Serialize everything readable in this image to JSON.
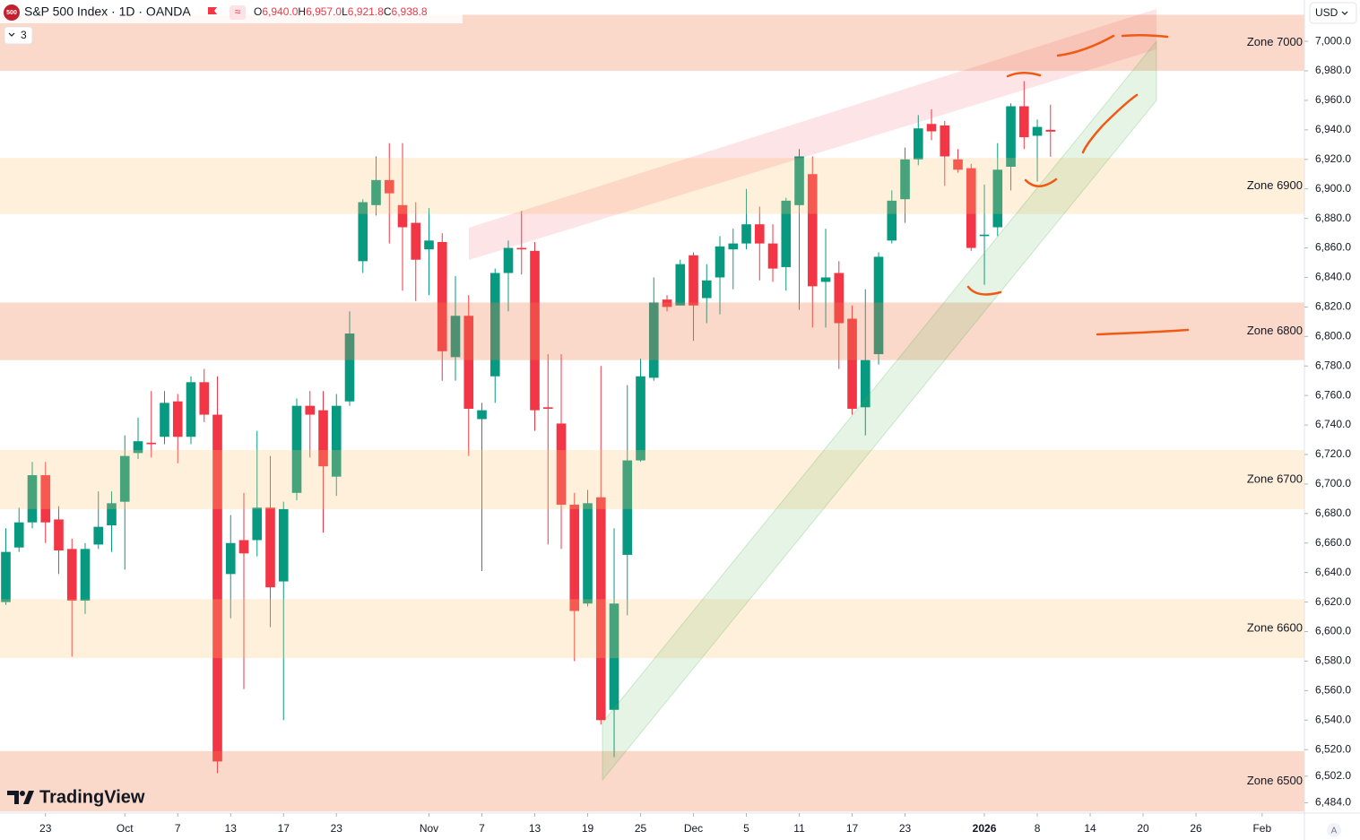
{
  "ui": {
    "logo": "500",
    "symbol": "S&P 500 Index · 1D · OANDA",
    "ohlc": [
      [
        "O",
        "6,940.0"
      ],
      [
        "H",
        "6,957.0"
      ],
      [
        "L",
        "6,921.8"
      ],
      [
        "C",
        "6,938.8"
      ]
    ],
    "indicators": "3",
    "currency": "USD",
    "brand": "TradingView",
    "scale_mode": "A"
  },
  "chart_data": {
    "type": "candlestick",
    "up_color": "#089981",
    "down_color": "#f23645",
    "grid": false,
    "open": [
      6620,
      6657,
      6674,
      6706,
      6676,
      6656,
      6621,
      6659,
      6672,
      6688,
      6721,
      6728,
      6732,
      6756,
      6732,
      6769,
      6747,
      6639,
      6662,
      6662,
      6684,
      6634,
      6694,
      6753,
      6750,
      6705,
      6756,
      6851,
      6889,
      6906,
      6889,
      6877,
      6859,
      6864,
      6786,
      6814,
      6744,
      6773,
      6843,
      6860,
      6858,
      6752,
      6741,
      6686,
      6619,
      6691,
      6547,
      6652,
      6716,
      6772,
      6825,
      6821,
      6855,
      6826,
      6840,
      6859,
      6863,
      6876,
      6863,
      6847,
      6889,
      6910,
      6837,
      6843,
      6812,
      6752,
      6788,
      6865,
      6893,
      6920,
      6944,
      6943,
      6920,
      6914,
      6868,
      6874,
      6915,
      6956,
      6936,
      6940
    ],
    "high": [
      6670,
      6684,
      6715,
      6715,
      6685,
      6663,
      6660,
      6695,
      6695,
      6733,
      6745,
      6763,
      6763,
      6761,
      6773,
      6778,
      6773,
      6679,
      6694,
      6736,
      6719,
      6688,
      6758,
      6763,
      6763,
      6761,
      6817,
      6893,
      6922,
      6931,
      6931,
      6891,
      6887,
      6870,
      6841,
      6828,
      6755,
      6846,
      6865,
      6885,
      6864,
      6788,
      6788,
      6694,
      6696,
      6780,
      6670,
      6767,
      6785,
      6840,
      6828,
      6852,
      6857,
      6849,
      6868,
      6873,
      6900,
      6888,
      6876,
      6894,
      6927,
      6922,
      6873,
      6851,
      6821,
      6832,
      6857,
      6899,
      6928,
      6950,
      6954,
      6946,
      6927,
      6917,
      6903,
      6931,
      6958,
      6973,
      6947,
      6957
    ],
    "low": [
      6618,
      6654,
      6670,
      6660,
      6639,
      6583,
      6612,
      6656,
      6654,
      6642,
      6717,
      6718,
      6727,
      6714,
      6727,
      6742,
      6504,
      6609,
      6561,
      6651,
      6603,
      6540,
      6689,
      6718,
      6667,
      6692,
      6753,
      6843,
      6882,
      6863,
      6831,
      6824,
      6828,
      6770,
      6770,
      6719,
      6641,
      6755,
      6817,
      6842,
      6736,
      6659,
      6656,
      6580,
      6617,
      6537,
      6515,
      6611,
      6715,
      6770,
      6817,
      6821,
      6797,
      6809,
      6815,
      6832,
      6859,
      6838,
      6837,
      6831,
      6818,
      6806,
      6806,
      6778,
      6747,
      6733,
      6781,
      6863,
      6877,
      6916,
      6933,
      6902,
      6911,
      6858,
      6835,
      6868,
      6899,
      6927,
      6905,
      6921.8
    ],
    "close": [
      6654,
      6674,
      6706,
      6674,
      6655,
      6621,
      6656,
      6671,
      6687,
      6719,
      6729,
      6727,
      6755,
      6732,
      6769,
      6747,
      6512,
      6660,
      6653,
      6684,
      6630,
      6683,
      6753,
      6747,
      6712,
      6753,
      6802,
      6891,
      6906,
      6897,
      6874,
      6852,
      6865,
      6790,
      6814,
      6751,
      6750,
      6843,
      6860,
      6859,
      6750,
      6751,
      6686,
      6614,
      6687,
      6540,
      6619,
      6716,
      6773,
      6823,
      6820,
      6849,
      6821,
      6838,
      6861,
      6863,
      6876,
      6863,
      6846,
      6892,
      6922,
      6834,
      6840,
      6809,
      6751,
      6784,
      6854,
      6892,
      6920,
      6941,
      6939,
      6922,
      6913,
      6860,
      6869,
      6913,
      6956,
      6935,
      6942,
      6938.8
    ],
    "xlim": [
      -0.44,
      98.2
    ],
    "ylim": [
      6477,
      7028
    ],
    "xticks": [
      {
        "value": 3,
        "label": "23"
      },
      {
        "value": 9,
        "label": "Oct"
      },
      {
        "value": 13,
        "label": "7"
      },
      {
        "value": 17,
        "label": "13"
      },
      {
        "value": 21,
        "label": "17"
      },
      {
        "value": 25,
        "label": "23"
      },
      {
        "value": 32,
        "label": "Nov"
      },
      {
        "value": 36,
        "label": "7"
      },
      {
        "value": 40,
        "label": "13"
      },
      {
        "value": 44,
        "label": "19"
      },
      {
        "value": 48,
        "label": "25"
      },
      {
        "value": 52,
        "label": "Dec"
      },
      {
        "value": 56,
        "label": "5"
      },
      {
        "value": 60,
        "label": "11"
      },
      {
        "value": 64,
        "label": "17"
      },
      {
        "value": 68,
        "label": "23"
      },
      {
        "value": 74,
        "label": "2026"
      },
      {
        "value": 78,
        "label": "8"
      },
      {
        "value": 82,
        "label": "14"
      },
      {
        "value": 86,
        "label": "20"
      },
      {
        "value": 90,
        "label": "26"
      },
      {
        "value": 95,
        "label": "Feb"
      }
    ],
    "yticks": [
      {
        "value": 7000,
        "label": "7,000.0"
      },
      {
        "value": 6980,
        "label": "6,980.0"
      },
      {
        "value": 6960,
        "label": "6,960.0"
      },
      {
        "value": 6940,
        "label": "6,940.0"
      },
      {
        "value": 6920,
        "label": "6,920.0"
      },
      {
        "value": 6900,
        "label": "6,900.0"
      },
      {
        "value": 6880,
        "label": "6,880.0"
      },
      {
        "value": 6860,
        "label": "6,860.0"
      },
      {
        "value": 6840,
        "label": "6,840.0"
      },
      {
        "value": 6820,
        "label": "6,820.0"
      },
      {
        "value": 6800,
        "label": "6,800.0"
      },
      {
        "value": 6780,
        "label": "6,780.0"
      },
      {
        "value": 6760,
        "label": "6,760.0"
      },
      {
        "value": 6740,
        "label": "6,740.0"
      },
      {
        "value": 6720,
        "label": "6,720.0"
      },
      {
        "value": 6700,
        "label": "6,700.0"
      },
      {
        "value": 6680,
        "label": "6,680.0"
      },
      {
        "value": 6660,
        "label": "6,660.0"
      },
      {
        "value": 6640,
        "label": "6,640.0"
      },
      {
        "value": 6620,
        "label": "6,620.0"
      },
      {
        "value": 6600,
        "label": "6,600.0"
      },
      {
        "value": 6580,
        "label": "6,580.0"
      },
      {
        "value": 6560,
        "label": "6,560.0"
      },
      {
        "value": 6540,
        "label": "6,540.0"
      },
      {
        "value": 6520,
        "label": "6,520.0"
      },
      {
        "value": 6502,
        "label": "6,502.0"
      },
      {
        "value": 6484,
        "label": "6,484.0"
      }
    ],
    "zones": [
      {
        "label": "Zone 7000",
        "from": 6980,
        "to": 7018,
        "color": "rgba(240,130,80,0.3)"
      },
      {
        "label": "Zone 6900",
        "from": 6883,
        "to": 6921,
        "color": "rgba(255,195,110,0.25)"
      },
      {
        "label": "Zone 6800",
        "from": 6784,
        "to": 6823,
        "color": "rgba(240,130,80,0.3)"
      },
      {
        "label": "Zone 6700",
        "from": 6683,
        "to": 6723,
        "color": "rgba(255,195,110,0.25)"
      },
      {
        "label": "Zone 6600",
        "from": 6582,
        "to": 6622,
        "color": "rgba(255,195,110,0.25)"
      },
      {
        "label": "Zone 6500",
        "from": 6478,
        "to": 6519,
        "color": "rgba(240,130,80,0.3)"
      }
    ]
  }
}
